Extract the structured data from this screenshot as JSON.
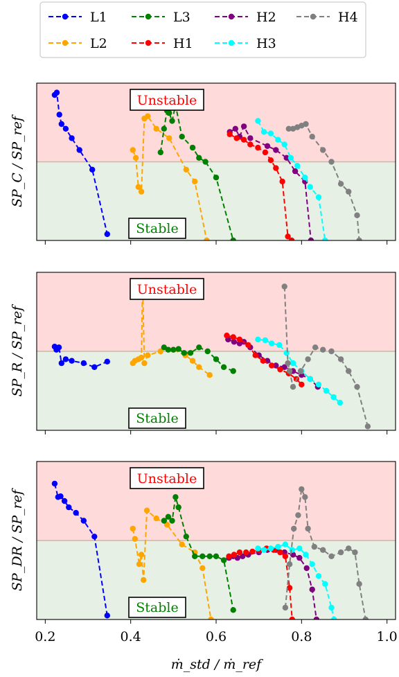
{
  "legend": {
    "items": [
      {
        "name": "L1",
        "color": "#0000ff"
      },
      {
        "name": "L3",
        "color": "#008000"
      },
      {
        "name": "H2",
        "color": "#800080"
      },
      {
        "name": "H4",
        "color": "#808080"
      },
      {
        "name": "L2",
        "color": "#ffa500"
      },
      {
        "name": "H1",
        "color": "#ff0000"
      },
      {
        "name": "H3",
        "color": "#00ffff"
      }
    ],
    "placement": "top-center"
  },
  "region_labels": {
    "unstable": "Unstable",
    "stable": "Stable",
    "unstable_color": "#ff0000",
    "stable_color": "#008000",
    "unstable_fill": "#ffdada",
    "stable_fill": "#e6f0e4",
    "threshold_color": "#c8b8a6"
  },
  "x_axis": {
    "label": "ṁ_std / ṁ_ref",
    "xlim": [
      0.18,
      1.02
    ],
    "ticks": [
      0.2,
      0.4,
      0.6,
      0.8,
      1.0
    ],
    "tick_labels": [
      "0.2",
      "0.4",
      "0.6",
      "0.8",
      "1.0"
    ]
  },
  "chart_data": [
    {
      "type": "line",
      "ylabel": "SP_C / SP_ref",
      "threshold": 0,
      "ylim": [
        -1,
        1
      ],
      "grid": false,
      "series": [
        {
          "name": "L1",
          "x": [
            0.222,
            0.227,
            0.233,
            0.238,
            0.248,
            0.262,
            0.28,
            0.31,
            0.345
          ],
          "y": [
            0.85,
            0.88,
            0.6,
            0.48,
            0.42,
            0.3,
            0.15,
            -0.1,
            -0.92
          ]
        },
        {
          "name": "L2",
          "x": [
            0.405,
            0.412,
            0.418,
            0.425,
            0.432,
            0.44,
            0.46,
            0.49,
            0.53,
            0.55,
            0.578
          ],
          "y": [
            0.15,
            0.05,
            -0.32,
            -0.38,
            0.55,
            0.58,
            0.42,
            0.3,
            -0.1,
            -0.25,
            -1.0
          ]
        },
        {
          "name": "L3",
          "x": [
            0.47,
            0.478,
            0.485,
            0.49,
            0.497,
            0.505,
            0.52,
            0.545,
            0.56,
            0.575,
            0.6,
            0.64
          ],
          "y": [
            0.12,
            0.42,
            0.65,
            0.62,
            0.52,
            0.72,
            0.32,
            0.18,
            0.05,
            0.0,
            -0.2,
            -1.0
          ]
        },
        {
          "name": "H2",
          "x": [
            0.632,
            0.645,
            0.655,
            0.665,
            0.68,
            0.72,
            0.74,
            0.765,
            0.785,
            0.808,
            0.822
          ],
          "y": [
            0.38,
            0.42,
            0.32,
            0.45,
            0.3,
            0.2,
            0.15,
            0.05,
            -0.12,
            -0.25,
            -1.0
          ]
        },
        {
          "name": "H1",
          "x": [
            0.632,
            0.648,
            0.665,
            0.68,
            0.698,
            0.715,
            0.728,
            0.74,
            0.755,
            0.768,
            0.777
          ],
          "y": [
            0.35,
            0.3,
            0.28,
            0.22,
            0.18,
            0.12,
            0.02,
            -0.08,
            -0.25,
            -0.95,
            -1.0
          ]
        },
        {
          "name": "H3",
          "x": [
            0.698,
            0.712,
            0.728,
            0.745,
            0.76,
            0.775,
            0.79,
            0.808,
            0.82,
            0.84,
            0.855
          ],
          "y": [
            0.52,
            0.38,
            0.36,
            0.28,
            0.22,
            0.05,
            -0.05,
            -0.2,
            -0.32,
            -0.45,
            -1.0
          ]
        },
        {
          "name": "H4",
          "x": [
            0.77,
            0.78,
            0.79,
            0.8,
            0.81,
            0.825,
            0.85,
            0.87,
            0.892,
            0.91,
            0.93,
            0.935
          ],
          "y": [
            0.42,
            0.42,
            0.44,
            0.46,
            0.48,
            0.32,
            0.15,
            0.0,
            -0.28,
            -0.38,
            -0.68,
            -1.0
          ]
        }
      ]
    },
    {
      "type": "line",
      "ylabel": "SP_R / SP_ref",
      "threshold": 0,
      "ylim": [
        -1,
        1
      ],
      "grid": false,
      "series": [
        {
          "name": "L1",
          "x": [
            0.222,
            0.226,
            0.232,
            0.238,
            0.248,
            0.262,
            0.29,
            0.315,
            0.345
          ],
          "y": [
            0.06,
            0.02,
            0.05,
            -0.15,
            -0.1,
            -0.12,
            -0.15,
            -0.2,
            -0.13
          ]
        },
        {
          "name": "L2",
          "x": [
            0.405,
            0.41,
            0.418,
            0.425,
            0.428,
            0.432,
            0.44,
            0.47,
            0.5,
            0.528,
            0.545,
            0.56,
            0.585
          ],
          "y": [
            -0.15,
            -0.12,
            -0.1,
            -0.08,
            0.85,
            -0.15,
            -0.05,
            0.0,
            0.02,
            -0.05,
            -0.12,
            -0.2,
            -0.3
          ]
        },
        {
          "name": "L3",
          "x": [
            0.478,
            0.488,
            0.5,
            0.512,
            0.525,
            0.54,
            0.56,
            0.58,
            0.6,
            0.618,
            0.64
          ],
          "y": [
            0.05,
            0.02,
            0.02,
            0.03,
            -0.02,
            -0.02,
            0.05,
            0.0,
            -0.1,
            -0.2,
            -0.25
          ]
        },
        {
          "name": "H2",
          "x": [
            0.628,
            0.642,
            0.655,
            0.665,
            0.68,
            0.7,
            0.72,
            0.74,
            0.76,
            0.78,
            0.8,
            0.82,
            0.838
          ],
          "y": [
            0.15,
            0.12,
            0.1,
            0.12,
            0.05,
            -0.05,
            -0.12,
            -0.18,
            -0.2,
            -0.25,
            -0.3,
            -0.35,
            -0.45
          ]
        },
        {
          "name": "H1",
          "x": [
            0.625,
            0.64,
            0.655,
            0.675,
            0.692,
            0.71,
            0.73,
            0.75,
            0.77,
            0.788,
            0.8
          ],
          "y": [
            0.2,
            0.18,
            0.15,
            0.08,
            -0.05,
            -0.12,
            -0.18,
            -0.23,
            -0.28,
            -0.35,
            -0.42
          ]
        },
        {
          "name": "H3",
          "x": [
            0.698,
            0.715,
            0.73,
            0.748,
            0.765,
            0.78,
            0.8,
            0.82,
            0.84,
            0.858,
            0.875,
            0.89
          ],
          "y": [
            0.15,
            0.14,
            0.1,
            0.08,
            -0.02,
            -0.15,
            -0.25,
            -0.35,
            -0.42,
            -0.5,
            -0.58,
            -0.65
          ]
        },
        {
          "name": "H4",
          "x": [
            0.76,
            0.768,
            0.772,
            0.78,
            0.798,
            0.815,
            0.832,
            0.85,
            0.87,
            0.892,
            0.91,
            0.93,
            0.955
          ],
          "y": [
            0.82,
            -0.15,
            -0.25,
            -0.45,
            -0.25,
            -0.1,
            0.05,
            0.02,
            0.0,
            -0.1,
            -0.25,
            -0.45,
            -0.95
          ]
        }
      ]
    },
    {
      "type": "line",
      "ylabel": "SP_DR / SP_ref",
      "threshold": 0,
      "ylim": [
        -1,
        1
      ],
      "grid": false,
      "series": [
        {
          "name": "L1",
          "x": [
            0.222,
            0.23,
            0.236,
            0.245,
            0.255,
            0.272,
            0.29,
            0.315,
            0.345
          ],
          "y": [
            0.72,
            0.55,
            0.56,
            0.5,
            0.42,
            0.35,
            0.25,
            0.05,
            -0.95
          ]
        },
        {
          "name": "L2",
          "x": [
            0.405,
            0.41,
            0.42,
            0.425,
            0.43,
            0.438,
            0.46,
            0.485,
            0.52,
            0.55,
            0.568,
            0.588
          ],
          "y": [
            0.15,
            0.02,
            -0.3,
            -0.18,
            -0.5,
            0.38,
            0.28,
            0.2,
            -0.05,
            -0.15,
            -0.35,
            -1.0
          ]
        },
        {
          "name": "L3",
          "x": [
            0.478,
            0.488,
            0.497,
            0.505,
            0.512,
            0.53,
            0.55,
            0.568,
            0.585,
            0.6,
            0.618,
            0.64
          ],
          "y": [
            0.25,
            0.3,
            0.25,
            0.55,
            0.42,
            0.05,
            -0.2,
            -0.2,
            -0.2,
            -0.2,
            -0.25,
            -0.88
          ]
        },
        {
          "name": "H2",
          "x": [
            0.63,
            0.64,
            0.65,
            0.662,
            0.675,
            0.7,
            0.72,
            0.74,
            0.76,
            0.78,
            0.795,
            0.812,
            0.825,
            0.835
          ],
          "y": [
            -0.22,
            -0.2,
            -0.22,
            -0.2,
            -0.18,
            -0.15,
            -0.12,
            -0.12,
            -0.15,
            -0.18,
            -0.22,
            -0.35,
            -0.62,
            -1.0
          ]
        },
        {
          "name": "H1",
          "x": [
            0.63,
            0.642,
            0.655,
            0.67,
            0.685,
            0.7,
            0.718,
            0.735,
            0.75,
            0.762,
            0.772,
            0.778
          ],
          "y": [
            -0.2,
            -0.18,
            -0.15,
            -0.15,
            -0.14,
            -0.12,
            -0.1,
            -0.12,
            -0.15,
            -0.2,
            -0.6,
            -1.0
          ]
        },
        {
          "name": "H3",
          "x": [
            0.698,
            0.712,
            0.728,
            0.745,
            0.762,
            0.778,
            0.795,
            0.81,
            0.825,
            0.84,
            0.855,
            0.87,
            0.876
          ],
          "y": [
            -0.1,
            -0.12,
            -0.1,
            -0.08,
            -0.05,
            -0.12,
            -0.1,
            -0.18,
            -0.3,
            -0.45,
            -0.55,
            -0.85,
            -1.0
          ]
        },
        {
          "name": "H4",
          "x": [
            0.762,
            0.772,
            0.782,
            0.792,
            0.8,
            0.808,
            0.815,
            0.83,
            0.85,
            0.87,
            0.892,
            0.91,
            0.925,
            0.935,
            0.95
          ],
          "y": [
            -0.85,
            -0.3,
            0.15,
            0.32,
            0.65,
            0.55,
            0.15,
            -0.08,
            -0.12,
            -0.2,
            -0.15,
            -0.1,
            -0.15,
            -0.55,
            -1.0
          ]
        }
      ]
    }
  ]
}
